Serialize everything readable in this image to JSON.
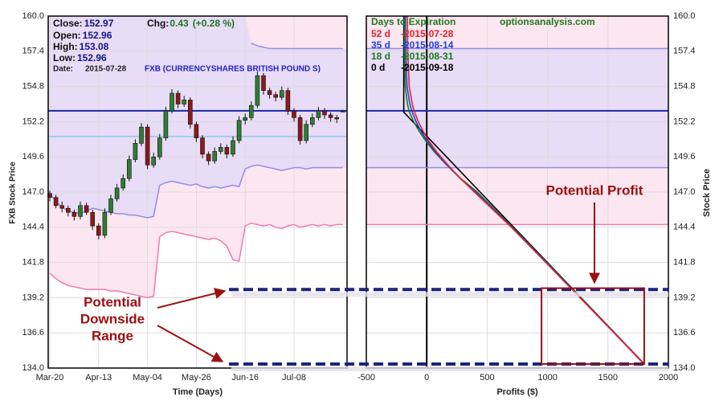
{
  "chart_data": [
    {
      "type": "candlestick",
      "info": {
        "close_label": "Close:",
        "close": 152.97,
        "open_label": "Open:",
        "open": 152.96,
        "high_label": "High:",
        "high": 153.08,
        "low_label": "Low:",
        "low": 152.96,
        "date_label": "Date:",
        "date": "2015-07-28",
        "chg_label": "Chg:",
        "chg": 0.43,
        "chg_pct": "(+0.28 %)"
      },
      "title": "FXB (CURRENCYSHARES BRITISH POUND S)",
      "xlabel": "Time (Days)",
      "ylabel": "FXB Stock Price",
      "categories": [
        "Mar-20",
        null,
        null,
        null,
        null,
        null,
        null,
        null,
        "Apr-13",
        null,
        null,
        null,
        null,
        null,
        null,
        null,
        "May-04",
        null,
        null,
        null,
        null,
        null,
        null,
        null,
        "May-26",
        null,
        null,
        null,
        null,
        null,
        null,
        null,
        "Jun-16",
        null,
        null,
        null,
        null,
        null,
        null,
        null,
        "Jul-08",
        null,
        null,
        null,
        null,
        null,
        null,
        null,
        null
      ],
      "open": [
        146.9,
        146.6,
        146.0,
        145.8,
        145.5,
        145.2,
        146.0,
        145.5,
        144.5,
        143.8,
        145.5,
        146.5,
        147.3,
        148.0,
        149.4,
        150.6,
        151.8,
        149.0,
        149.6,
        151.0,
        153.0,
        154.3,
        153.5,
        153.8,
        152.0,
        151.0,
        149.8,
        149.3,
        150.0,
        150.3,
        149.8,
        150.8,
        152.3,
        152.5,
        153.4,
        155.6,
        154.5,
        154.2,
        154.0,
        154.5,
        153.0,
        152.5,
        150.8,
        152.0,
        152.5,
        153.0,
        152.7,
        152.5,
        152.96
      ],
      "high": [
        147.1,
        146.8,
        146.3,
        146.0,
        145.7,
        146.3,
        146.2,
        145.7,
        144.7,
        145.8,
        146.8,
        147.6,
        148.3,
        149.7,
        150.9,
        152.1,
        152.0,
        149.9,
        151.3,
        153.3,
        154.6,
        154.5,
        154.1,
        154.0,
        152.2,
        151.2,
        150.0,
        150.3,
        150.6,
        150.5,
        151.1,
        152.6,
        152.8,
        153.7,
        155.9,
        155.8,
        154.7,
        154.4,
        154.8,
        154.7,
        153.2,
        152.7,
        152.3,
        152.8,
        153.3,
        153.2,
        152.9,
        152.7,
        153.08
      ],
      "low": [
        146.3,
        145.8,
        145.5,
        145.2,
        144.9,
        145.0,
        145.3,
        144.2,
        143.5,
        143.6,
        145.3,
        146.3,
        147.1,
        147.8,
        149.2,
        150.4,
        148.7,
        148.8,
        149.4,
        150.8,
        152.8,
        153.2,
        153.3,
        151.7,
        150.7,
        149.5,
        149.0,
        149.1,
        149.8,
        149.5,
        149.6,
        150.6,
        152.0,
        152.3,
        153.2,
        154.2,
        153.9,
        153.7,
        153.8,
        152.7,
        152.2,
        150.5,
        150.6,
        151.8,
        152.3,
        152.4,
        152.2,
        152.1,
        152.96
      ],
      "close": [
        146.6,
        146.0,
        145.8,
        145.5,
        145.2,
        146.0,
        145.5,
        144.5,
        143.8,
        145.5,
        146.5,
        147.3,
        148.0,
        149.4,
        150.6,
        151.8,
        149.0,
        149.6,
        151.0,
        153.0,
        154.3,
        153.5,
        153.8,
        152.0,
        151.0,
        149.8,
        149.3,
        150.0,
        150.3,
        149.8,
        150.8,
        152.3,
        152.5,
        153.4,
        155.6,
        154.5,
        154.2,
        154.0,
        154.5,
        153.0,
        152.5,
        150.8,
        152.0,
        152.5,
        153.0,
        152.7,
        152.5,
        152.4,
        152.97
      ],
      "up_color": "#2e7d32",
      "down_color": "#8b1a1a",
      "bands": [
        {
          "color": "#8f8fe8",
          "values": [
            null,
            null,
            null,
            null,
            null,
            null,
            null,
            null,
            null,
            null,
            null,
            null,
            null,
            null,
            null,
            null,
            null,
            null,
            null,
            null,
            null,
            null,
            null,
            null,
            null,
            null,
            null,
            null,
            null,
            null,
            null,
            null,
            null,
            158.0,
            157.8,
            157.7,
            157.6,
            157.6,
            157.6,
            157.6,
            157.6,
            157.6,
            157.6,
            157.6,
            157.6,
            157.6,
            157.6,
            157.6,
            157.6
          ]
        },
        {
          "color": "#8f8fe8",
          "fill": "#e8dcf6",
          "values": [
            146.9,
            146.3,
            145.9,
            145.6,
            145.5,
            145.4,
            145.6,
            145.8,
            145.7,
            145.6,
            145.5,
            145.4,
            145.4,
            145.3,
            145.3,
            145.2,
            145.1,
            145.2,
            147.5,
            147.7,
            147.8,
            147.7,
            147.6,
            147.5,
            147.6,
            147.4,
            147.3,
            147.4,
            147.3,
            147.4,
            147.5,
            147.4,
            148.7,
            148.9,
            149.0,
            148.9,
            148.8,
            148.7,
            148.6,
            148.7,
            148.8,
            148.8,
            148.7,
            148.8,
            148.8,
            148.8,
            148.8,
            148.8,
            148.8
          ]
        },
        {
          "color": "#f27ab0",
          "fill": "#fce6f0",
          "values": [
            141.0,
            140.6,
            140.3,
            140.1,
            140.0,
            139.9,
            139.8,
            139.8,
            139.8,
            139.8,
            139.7,
            139.7,
            139.6,
            139.5,
            139.4,
            139.3,
            139.2,
            139.3,
            143.7,
            144.0,
            144.1,
            144.0,
            143.9,
            143.8,
            143.7,
            143.6,
            143.5,
            143.6,
            143.4,
            143.0,
            142.0,
            141.9,
            144.5,
            144.7,
            144.6,
            144.5,
            144.6,
            144.4,
            144.3,
            144.5,
            144.6,
            144.4,
            144.5,
            144.6,
            144.5,
            144.6,
            144.5,
            144.6,
            144.6
          ]
        }
      ],
      "hlines": [
        {
          "value": 153.0,
          "color": "#1a2aa8"
        },
        {
          "value": 151.1,
          "color": "#8cc8ef"
        }
      ],
      "ylim": [
        134.0,
        160.0
      ],
      "yticks": [
        {
          "value": 134.0,
          "label": "134.0"
        },
        136.6,
        139.2,
        141.8,
        144.4,
        {
          "value": 147.0,
          "label": "147.0"
        },
        149.6,
        152.2,
        154.8,
        157.4,
        {
          "value": 160.0,
          "label": "160.0"
        }
      ],
      "grid": true,
      "range_lines": {
        "values": [
          139.8,
          134.3
        ],
        "color": "#1a237e"
      },
      "annotation": [
        "Potential",
        "Downside",
        "Range"
      ],
      "annotation_color": "#9b1010"
    },
    {
      "type": "line",
      "title": "optionsanalysis.com",
      "legend_title": "Days to Expiration",
      "xlabel": "Profits ($)",
      "ylabel": "Stock Price",
      "y": [
        160.0,
        157.4,
        154.8,
        153.5,
        152.9,
        152.2,
        151.5,
        150.8,
        150.0,
        149.0,
        148.0,
        147.0,
        144.4,
        141.8,
        139.2,
        136.6,
        134.3
      ],
      "series": [
        {
          "name": "52 d",
          "date": "-2015-07-28",
          "color": "#e8202a",
          "values": [
            -160,
            -157,
            -145,
            -120,
            -100,
            -70,
            -30,
            15,
            80,
            175,
            280,
            395,
            700,
            985,
            1268,
            1550,
            1797
          ]
        },
        {
          "name": "35 d",
          "date": "-2015-08-14",
          "color": "#1f3fe0",
          "values": [
            -175,
            -173,
            -163,
            -140,
            -120,
            -88,
            -48,
            2,
            70,
            168,
            278,
            405,
            705,
            990,
            1271,
            1552,
            1799
          ]
        },
        {
          "name": "18 d",
          "date": "-2015-08-31",
          "color": "#1f7a1f",
          "values": [
            -185,
            -184,
            -177,
            -160,
            -143,
            -108,
            -63,
            -10,
            60,
            165,
            282,
            418,
            710,
            994,
            1274,
            1553,
            1800
          ]
        },
        {
          "name": "0 d",
          "date": "-2015-09-18",
          "color": "#000000",
          "values": [
            -190,
            -190,
            -190,
            -190,
            -190,
            -115,
            -40,
            35,
            121,
            228,
            335,
            442,
            720,
            999,
            1277,
            1555,
            1801
          ]
        }
      ],
      "xlim": [
        -500,
        2000
      ],
      "xticks": [
        -500,
        0,
        500,
        1000,
        1500,
        2000
      ],
      "ylim": [
        134.0,
        160.0
      ],
      "yticks": [
        {
          "value": 134.0,
          "label": "134.0"
        },
        136.6,
        139.2,
        141.8,
        144.4,
        {
          "value": 147.0,
          "label": "147.0"
        },
        149.6,
        152.2,
        154.8,
        157.4,
        {
          "value": 160.0,
          "label": "160.0"
        }
      ],
      "grid": true,
      "hlines": [
        {
          "value": 153.0,
          "color": "#1a2aa8"
        }
      ],
      "profit_box": {
        "x": [
          950,
          1800
        ],
        "y": [
          134.3,
          139.9
        ],
        "color": "#9b1010"
      },
      "annotation": "Potential Profit"
    }
  ]
}
